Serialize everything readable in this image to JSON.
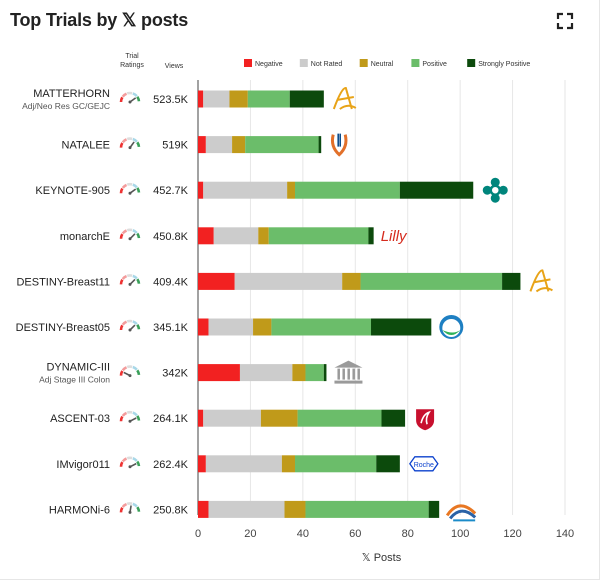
{
  "title_prefix": "Top Trials by",
  "title_x": "𝕏",
  "title_suffix": "posts",
  "columns": {
    "ratings": "Trial\nRatings",
    "views": "Views"
  },
  "colors": {
    "Negative": "#f22121",
    "Not Rated": "#cccccc",
    "Neutral": "#c09a1a",
    "Positive": "#6bbd6a",
    "Strongly Positive": "#0c4a0c"
  },
  "chart_data": {
    "type": "bar",
    "orientation": "horizontal",
    "stacked": true,
    "xlabel": "𝕏 Posts",
    "xlim": [
      0,
      140
    ],
    "xticks": [
      0,
      20,
      40,
      60,
      80,
      100,
      120,
      140
    ],
    "legend_placement": "top",
    "categories": [
      "MATTERHORN",
      "NATALEE",
      "KEYNOTE-905",
      "monarchE",
      "DESTINY-Breast11",
      "DESTINY-Breast05",
      "DYNAMIC-III",
      "ASCENT-03",
      "IMvigor011",
      "HARMONi-6"
    ],
    "subtitles": [
      "Adj/Neo Res GC/GEJC",
      "",
      "",
      "",
      "",
      "",
      "Adj Stage III Colon",
      "",
      "",
      ""
    ],
    "views": [
      "523.5K",
      "519K",
      "452.7K",
      "450.8K",
      "409.4K",
      "345.1K",
      "342K",
      "264.1K",
      "262.4K",
      "250.8K"
    ],
    "series": [
      {
        "name": "Negative",
        "values": [
          2,
          3,
          2,
          6,
          14,
          4,
          16,
          2,
          3,
          4
        ]
      },
      {
        "name": "Not Rated",
        "values": [
          10,
          10,
          32,
          17,
          41,
          17,
          20,
          22,
          29,
          29
        ]
      },
      {
        "name": "Neutral",
        "values": [
          7,
          5,
          3,
          4,
          7,
          7,
          5,
          14,
          5,
          8
        ]
      },
      {
        "name": "Positive",
        "values": [
          16,
          28,
          40,
          38,
          54,
          38,
          7,
          32,
          31,
          47
        ]
      },
      {
        "name": "Strongly Positive",
        "values": [
          13,
          1,
          28,
          2,
          7,
          23,
          1,
          9,
          9,
          4
        ]
      }
    ],
    "gauges": [
      0.8,
      0.7,
      0.8,
      0.75,
      0.75,
      0.75,
      0.15,
      0.85,
      0.85,
      0.55
    ],
    "logos": [
      "astrazeneca-logo",
      "novartis-logo",
      "merck-logo",
      "lilly-logo",
      "astrazeneca-logo",
      "daiichi-sankyo-logo",
      "institution-logo",
      "gilead-logo",
      "roche-logo",
      "summit-logo"
    ],
    "logo_texts": [
      "",
      "",
      "",
      "Lilly",
      "",
      "",
      "",
      "",
      "Roche",
      ""
    ]
  }
}
